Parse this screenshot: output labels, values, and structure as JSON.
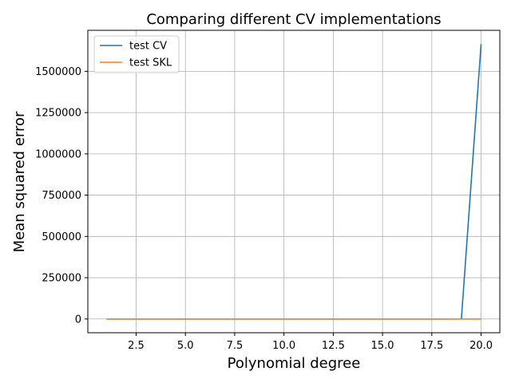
{
  "chart_data": {
    "type": "line",
    "title": "Comparing different CV implementations",
    "xlabel": "Polynomial degree",
    "ylabel": "Mean squared error",
    "x": [
      1,
      2,
      3,
      4,
      5,
      6,
      7,
      8,
      9,
      10,
      11,
      12,
      13,
      14,
      15,
      16,
      17,
      18,
      19,
      20
    ],
    "series": [
      {
        "name": "test CV",
        "color": "#1f77b4",
        "values": [
          1,
          1,
          1,
          1,
          1,
          1,
          1,
          1,
          1,
          1,
          1,
          1,
          2,
          3,
          4,
          5,
          8,
          15,
          40,
          1665000
        ]
      },
      {
        "name": "test SKL",
        "color": "#ff7f0e",
        "values": [
          1,
          1,
          1,
          1,
          1,
          1,
          1,
          1,
          1,
          1,
          1,
          1,
          1,
          1,
          1,
          2,
          2,
          3,
          5,
          10
        ]
      }
    ],
    "xlim": [
      0.05,
      20.95
    ],
    "ylim": [
      -83250,
      1748250
    ],
    "xticks": [
      2.5,
      5.0,
      7.5,
      10.0,
      12.5,
      15.0,
      17.5,
      20.0
    ],
    "xtick_labels": [
      "2.5",
      "5.0",
      "7.5",
      "10.0",
      "12.5",
      "15.0",
      "17.5",
      "20.0"
    ],
    "yticks": [
      0,
      250000,
      500000,
      750000,
      1000000,
      1250000,
      1500000
    ],
    "ytick_labels": [
      "0",
      "250000",
      "500000",
      "750000",
      "1000000",
      "1250000",
      "1500000"
    ],
    "grid": true,
    "legend_placement": "upper-left"
  }
}
